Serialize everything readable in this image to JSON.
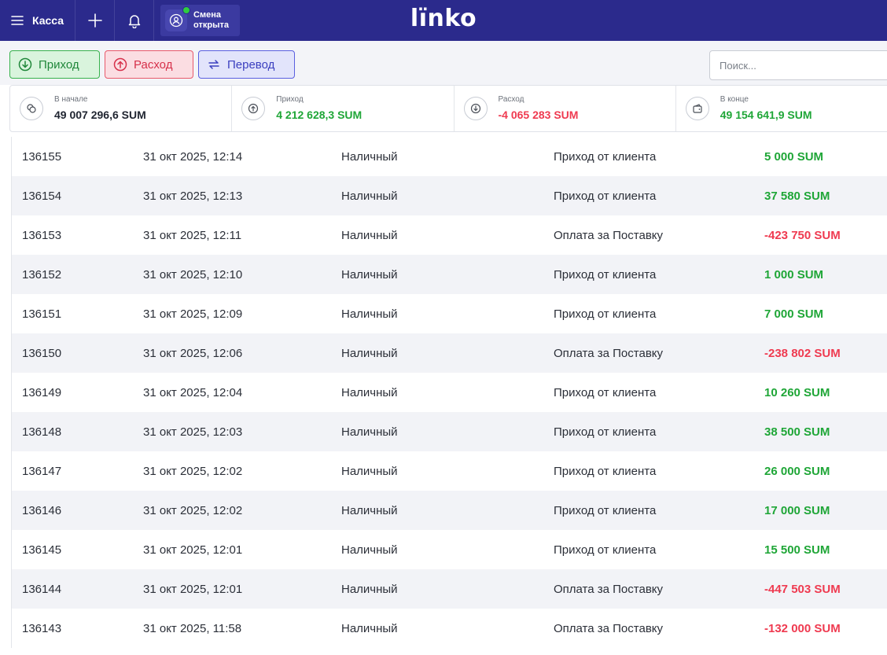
{
  "topbar": {
    "menu_label": "Касса",
    "shift_line1": "Смена",
    "shift_line2": "открыта",
    "logo": "lïnko"
  },
  "actions": {
    "income_label": "Приход",
    "expense_label": "Расход",
    "transfer_label": "Перевод",
    "search_placeholder": "Поиск..."
  },
  "summary": [
    {
      "label": "В начале",
      "value": "49 007 296,6 SUM",
      "color": "#1f2430"
    },
    {
      "label": "Приход",
      "value": "4 212 628,3 SUM",
      "color": "#1fa637"
    },
    {
      "label": "Расход",
      "value": "-4 065 283 SUM",
      "color": "#ef3a50"
    },
    {
      "label": "В конце",
      "value": "49 154 641,9 SUM",
      "color": "#1fa637"
    }
  ],
  "rows": [
    {
      "id": "136155",
      "date": "31 окт 2025, 12:14",
      "type": "Наличный",
      "desc": "Приход от клиента",
      "amount": "5 000 SUM",
      "sign": "pos"
    },
    {
      "id": "136154",
      "date": "31 окт 2025, 12:13",
      "type": "Наличный",
      "desc": "Приход от клиента",
      "amount": "37 580 SUM",
      "sign": "pos"
    },
    {
      "id": "136153",
      "date": "31 окт 2025, 12:11",
      "type": "Наличный",
      "desc": "Оплата за Поставку",
      "amount": "-423 750 SUM",
      "sign": "neg"
    },
    {
      "id": "136152",
      "date": "31 окт 2025, 12:10",
      "type": "Наличный",
      "desc": "Приход от клиента",
      "amount": "1 000 SUM",
      "sign": "pos"
    },
    {
      "id": "136151",
      "date": "31 окт 2025, 12:09",
      "type": "Наличный",
      "desc": "Приход от клиента",
      "amount": "7 000 SUM",
      "sign": "pos"
    },
    {
      "id": "136150",
      "date": "31 окт 2025, 12:06",
      "type": "Наличный",
      "desc": "Оплата за Поставку",
      "amount": "-238 802 SUM",
      "sign": "neg"
    },
    {
      "id": "136149",
      "date": "31 окт 2025, 12:04",
      "type": "Наличный",
      "desc": "Приход от клиента",
      "amount": "10 260 SUM",
      "sign": "pos"
    },
    {
      "id": "136148",
      "date": "31 окт 2025, 12:03",
      "type": "Наличный",
      "desc": "Приход от клиента",
      "amount": "38 500 SUM",
      "sign": "pos"
    },
    {
      "id": "136147",
      "date": "31 окт 2025, 12:02",
      "type": "Наличный",
      "desc": "Приход от клиента",
      "amount": "26 000 SUM",
      "sign": "pos"
    },
    {
      "id": "136146",
      "date": "31 окт 2025, 12:02",
      "type": "Наличный",
      "desc": "Приход от клиента",
      "amount": "17 000 SUM",
      "sign": "pos"
    },
    {
      "id": "136145",
      "date": "31 окт 2025, 12:01",
      "type": "Наличный",
      "desc": "Приход от клиента",
      "amount": "15 500 SUM",
      "sign": "pos"
    },
    {
      "id": "136144",
      "date": "31 окт 2025, 12:01",
      "type": "Наличный",
      "desc": "Оплата за Поставку",
      "amount": "-447 503 SUM",
      "sign": "neg"
    },
    {
      "id": "136143",
      "date": "31 окт 2025, 11:58",
      "type": "Наличный",
      "desc": "Оплата за Поставку",
      "amount": "-132 000 SUM",
      "sign": "neg"
    }
  ]
}
